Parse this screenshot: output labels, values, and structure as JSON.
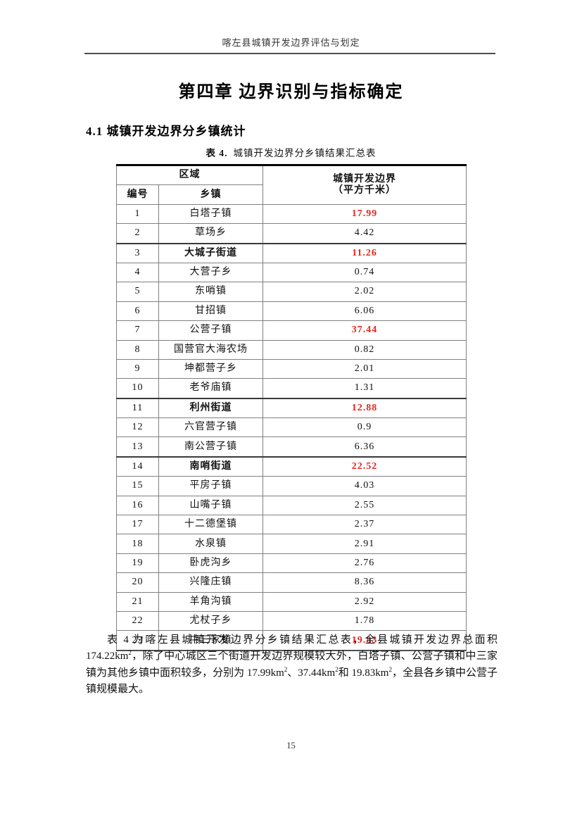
{
  "page": {
    "header": "喀左县城镇开发边界评估与划定",
    "chapter_title": "第四章 边界识别与指标确定",
    "section_heading": "4.1 城镇开发边界分乡镇统计",
    "caption_label": "表 4.",
    "caption_text": "城镇开发边界分乡镇结果汇总表",
    "page_number": "15"
  },
  "colors": {
    "accent_red": "#e8251d",
    "grid_gray": "#808080"
  },
  "table": {
    "header": {
      "region_group": "区域",
      "col_id": "编号",
      "col_town": "乡镇",
      "col_value_line1": "城镇开发边界",
      "col_value_line2": "（平方千米）"
    },
    "rows": [
      {
        "id": "1",
        "town": "白塔子镇",
        "value": "17.99",
        "value_red": true,
        "town_bold": false
      },
      {
        "id": "2",
        "town": "草场乡",
        "value": "4.42",
        "value_red": false,
        "town_bold": false
      },
      {
        "id": "3",
        "town": "大城子街道",
        "value": "11.26",
        "value_red": true,
        "town_bold": true
      },
      {
        "id": "4",
        "town": "大营子乡",
        "value": "0.74",
        "value_red": false,
        "town_bold": false
      },
      {
        "id": "5",
        "town": "东哨镇",
        "value": "2.02",
        "value_red": false,
        "town_bold": false
      },
      {
        "id": "6",
        "town": "甘招镇",
        "value": "6.06",
        "value_red": false,
        "town_bold": false
      },
      {
        "id": "7",
        "town": "公营子镇",
        "value": "37.44",
        "value_red": true,
        "town_bold": false
      },
      {
        "id": "8",
        "town": "国营官大海农场",
        "value": "0.82",
        "value_red": false,
        "town_bold": false
      },
      {
        "id": "9",
        "town": "坤都营子乡",
        "value": "2.01",
        "value_red": false,
        "town_bold": false
      },
      {
        "id": "10",
        "town": "老爷庙镇",
        "value": "1.31",
        "value_red": false,
        "town_bold": false
      },
      {
        "id": "11",
        "town": "利州街道",
        "value": "12.88",
        "value_red": true,
        "town_bold": true
      },
      {
        "id": "12",
        "town": "六官营子镇",
        "value": "0.9",
        "value_red": false,
        "town_bold": false
      },
      {
        "id": "13",
        "town": "南公营子镇",
        "value": "6.36",
        "value_red": false,
        "town_bold": false
      },
      {
        "id": "14",
        "town": "南哨街道",
        "value": "22.52",
        "value_red": true,
        "town_bold": true
      },
      {
        "id": "15",
        "town": "平房子镇",
        "value": "4.03",
        "value_red": false,
        "town_bold": false
      },
      {
        "id": "16",
        "town": "山嘴子镇",
        "value": "2.55",
        "value_red": false,
        "town_bold": false
      },
      {
        "id": "17",
        "town": "十二德堡镇",
        "value": "2.37",
        "value_red": false,
        "town_bold": false
      },
      {
        "id": "18",
        "town": "水泉镇",
        "value": "2.91",
        "value_red": false,
        "town_bold": false
      },
      {
        "id": "19",
        "town": "卧虎沟乡",
        "value": "2.76",
        "value_red": false,
        "town_bold": false
      },
      {
        "id": "20",
        "town": "兴隆庄镇",
        "value": "8.36",
        "value_red": false,
        "town_bold": false
      },
      {
        "id": "21",
        "town": "羊角沟镇",
        "value": "2.92",
        "value_red": false,
        "town_bold": false
      },
      {
        "id": "22",
        "town": "尤杖子乡",
        "value": "1.78",
        "value_red": false,
        "town_bold": false
      },
      {
        "id": "23",
        "town": "中三家镇",
        "value": "19.83",
        "value_red": true,
        "town_bold": false
      }
    ]
  },
  "paragraph": {
    "segments": [
      {
        "t": "表 4 为喀左县城镇开发边界分乡镇结果汇总表，全县城镇开发边界总面积 174.22km"
      },
      {
        "t": "2",
        "sup": true
      },
      {
        "t": "，除了中心城区三个街道开发边界规模较大外，白塔子镇、公营子镇和中三家镇为其他乡镇中面积较多，分别为 17.99km"
      },
      {
        "t": "2",
        "sup": true
      },
      {
        "t": "、37.44km"
      },
      {
        "t": "2",
        "sup": true
      },
      {
        "t": "和 19.83km"
      },
      {
        "t": "2",
        "sup": true
      },
      {
        "t": "，全县各乡镇中公营子镇规模最大。"
      }
    ]
  }
}
